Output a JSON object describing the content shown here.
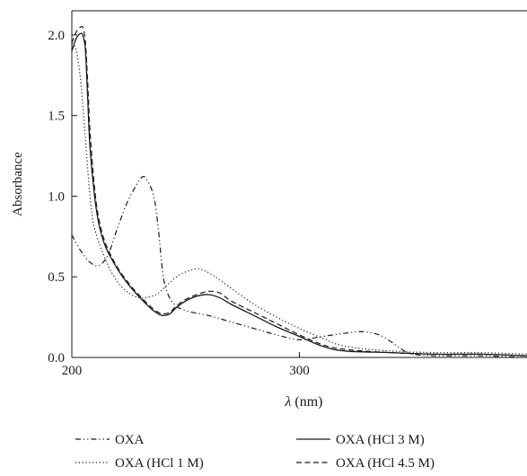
{
  "chart_data": {
    "type": "line",
    "xlabel_italic": "λ",
    "xlabel_unit": " (nm)",
    "ylabel": "Absorbance",
    "xlim": [
      200,
      400
    ],
    "ylim": [
      0,
      2.15
    ],
    "xticks": [
      200,
      300
    ],
    "xtick_labels": [
      "200",
      "300"
    ],
    "yticks": [
      0,
      0.5,
      1.0,
      1.5,
      2.0
    ],
    "ytick_labels": [
      "0.0",
      "0.5",
      "1.0",
      "1.5",
      "2.0"
    ],
    "grid": false,
    "legend_position": "bottom",
    "series": [
      {
        "name": "OXA",
        "dash": "dash-dot-dot",
        "x": [
          200,
          204,
          208,
          212,
          216,
          220,
          224,
          228,
          231,
          233,
          236,
          238,
          240,
          242,
          245,
          250,
          260,
          270,
          280,
          290,
          300,
          310,
          320,
          328,
          335,
          340,
          345,
          350,
          360,
          380,
          400
        ],
        "y": [
          0.76,
          0.66,
          0.59,
          0.57,
          0.64,
          0.8,
          0.95,
          1.06,
          1.12,
          1.1,
          1.0,
          0.8,
          0.52,
          0.4,
          0.33,
          0.29,
          0.26,
          0.22,
          0.18,
          0.14,
          0.11,
          0.13,
          0.15,
          0.16,
          0.14,
          0.1,
          0.05,
          0.02,
          0.01,
          0.01,
          0.0
        ]
      },
      {
        "name": "OXA (HCl 3 M)",
        "dash": "solid",
        "x": [
          200,
          202,
          204,
          205,
          206,
          207,
          208,
          210,
          212,
          215,
          220,
          225,
          230,
          235,
          238,
          240,
          243,
          246,
          250,
          255,
          260,
          265,
          270,
          280,
          290,
          300,
          310,
          320,
          340,
          360,
          380,
          400
        ],
        "y": [
          1.9,
          1.98,
          2.01,
          1.99,
          1.9,
          1.6,
          1.3,
          1.0,
          0.82,
          0.68,
          0.55,
          0.45,
          0.37,
          0.3,
          0.27,
          0.26,
          0.27,
          0.31,
          0.35,
          0.38,
          0.39,
          0.37,
          0.33,
          0.26,
          0.19,
          0.13,
          0.07,
          0.04,
          0.03,
          0.02,
          0.02,
          0.01
        ]
      },
      {
        "name": "OXA (HCl 1 M)",
        "dash": "dotted",
        "x": [
          200,
          202,
          204,
          206,
          208,
          210,
          215,
          220,
          225,
          230,
          235,
          238,
          242,
          246,
          250,
          255,
          258,
          262,
          268,
          280,
          290,
          300,
          310,
          320,
          340,
          360,
          380,
          400
        ],
        "y": [
          1.95,
          1.9,
          1.7,
          1.35,
          1.0,
          0.8,
          0.6,
          0.47,
          0.4,
          0.37,
          0.38,
          0.4,
          0.45,
          0.5,
          0.53,
          0.55,
          0.54,
          0.51,
          0.45,
          0.33,
          0.25,
          0.18,
          0.12,
          0.07,
          0.04,
          0.03,
          0.03,
          0.02
        ]
      },
      {
        "name": "OXA (HCl 4.5 M)",
        "dash": "dashed",
        "x": [
          200,
          202,
          204,
          205,
          206,
          207,
          208,
          210,
          212,
          215,
          220,
          225,
          230,
          235,
          238,
          240,
          243,
          246,
          250,
          255,
          260,
          265,
          270,
          280,
          290,
          300,
          310,
          320,
          340,
          360,
          380,
          400
        ],
        "y": [
          1.95,
          2.02,
          2.05,
          2.04,
          1.95,
          1.7,
          1.4,
          1.05,
          0.85,
          0.7,
          0.56,
          0.46,
          0.38,
          0.31,
          0.28,
          0.27,
          0.28,
          0.32,
          0.36,
          0.39,
          0.41,
          0.4,
          0.35,
          0.28,
          0.21,
          0.14,
          0.08,
          0.05,
          0.03,
          0.02,
          0.02,
          0.01
        ]
      }
    ]
  }
}
